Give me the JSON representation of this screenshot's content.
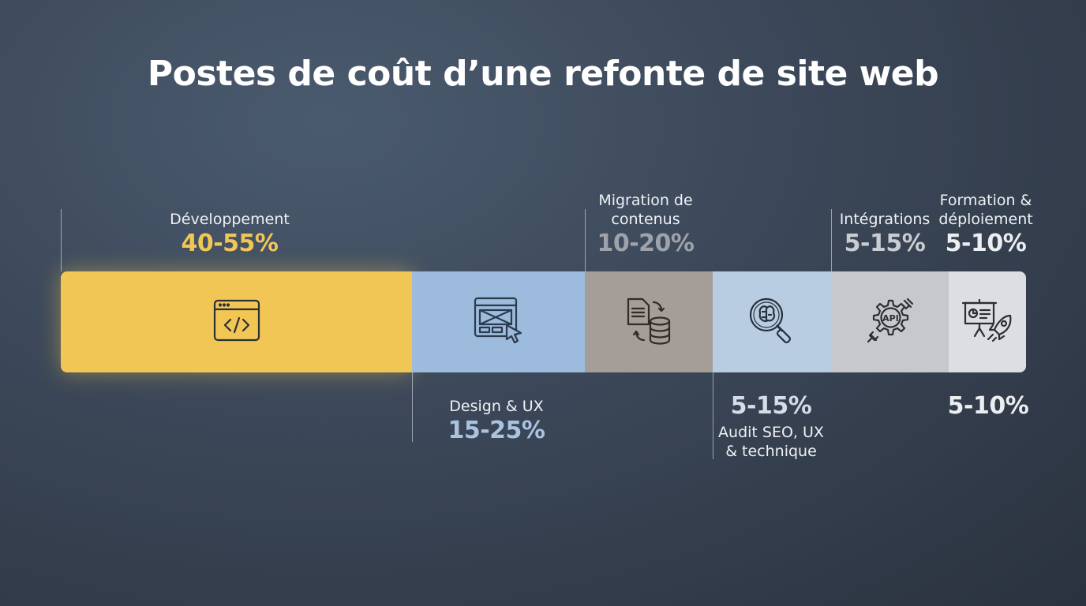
{
  "chart_data": {
    "type": "bar",
    "subtype": "stacked-horizontal",
    "title": "Postes de coût d’une refonte de site web",
    "segments": [
      {
        "name": "Développement",
        "range_label": "40-55%",
        "min": 40,
        "max": 55,
        "color": "#f2c655",
        "pct_color": "#f2c655",
        "icon": "code-window-icon",
        "label_position": "above"
      },
      {
        "name": "Design & UX",
        "range_label": "15-25%",
        "min": 15,
        "max": 25,
        "color": "#9dbbdc",
        "pct_color": "#a9c3e0",
        "icon": "wireframe-cursor-icon",
        "label_position": "below"
      },
      {
        "name": "Migration de\ncontenus",
        "range_label": "10-20%",
        "min": 10,
        "max": 20,
        "color": "#a59d98",
        "pct_color": "#9ea3ab",
        "icon": "document-database-icon",
        "label_position": "above"
      },
      {
        "name": "Audit SEO, UX\n& technique",
        "range_label": "5-15%",
        "min": 5,
        "max": 15,
        "color": "#b9cde2",
        "pct_color": "#d4dde8",
        "icon": "magnifier-brain-icon",
        "label_position": "below"
      },
      {
        "name": "Intégrations",
        "range_label": "5-15%",
        "min": 5,
        "max": 15,
        "color": "#c6c8cc",
        "pct_color": "#c9ccd2",
        "icon": "api-gear-icon",
        "label_position": "above"
      },
      {
        "name": "Formation &\ndéploiement",
        "range_label": "5-10%",
        "min": 5,
        "max": 10,
        "color": "#dcdee2",
        "pct_color": "#eceef1",
        "icon": "presentation-rocket-icon",
        "label_position": "above"
      }
    ],
    "extra_label": "5-10%"
  }
}
